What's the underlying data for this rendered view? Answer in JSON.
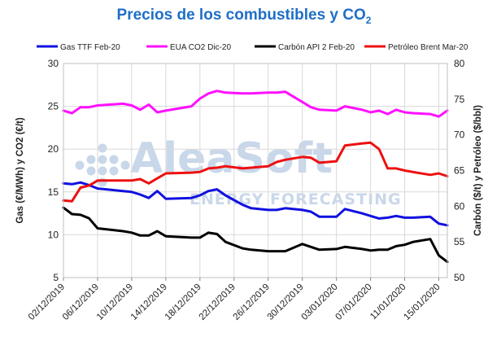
{
  "chart_data": {
    "type": "line",
    "title": "Precios de los combustibles y CO",
    "title_subscript": "2",
    "ylabel_left": "Gas (€/MWh) y CO2 (€/t)",
    "ylabel_right": "Carbón ($/t) y Petróleo ($/bbl)",
    "ylim_left": [
      5,
      30
    ],
    "ylim_right": [
      50,
      80
    ],
    "yticks_left": [
      "5",
      "10",
      "15",
      "20",
      "25",
      "30"
    ],
    "yticks_right": [
      "50",
      "55",
      "60",
      "65",
      "70",
      "75",
      "80"
    ],
    "x_ticks": [
      "02/12/2019",
      "06/12/2019",
      "10/12/2019",
      "14/12/2019",
      "18/12/2019",
      "22/12/2019",
      "26/12/2019",
      "30/12/2019",
      "03/01/2020",
      "07/01/2020",
      "11/01/2020",
      "15/01/2020"
    ],
    "grid": true,
    "legend_position": "top",
    "watermark": {
      "line1": "AleaSoft",
      "line2": "ENERGY FORECASTING"
    },
    "series": [
      {
        "name": "Gas TTF Feb-20",
        "axis": "left",
        "color": "#1010e0",
        "points": [
          [
            "2019-12-02",
            16.0
          ],
          [
            "2019-12-03",
            15.9
          ],
          [
            "2019-12-04",
            16.1
          ],
          [
            "2019-12-05",
            15.8
          ],
          [
            "2019-12-06",
            15.4
          ],
          [
            "2019-12-09",
            15.1
          ],
          [
            "2019-12-10",
            15.0
          ],
          [
            "2019-12-11",
            14.7
          ],
          [
            "2019-12-12",
            14.3
          ],
          [
            "2019-12-13",
            15.1
          ],
          [
            "2019-12-14",
            14.2
          ],
          [
            "2019-12-17",
            14.3
          ],
          [
            "2019-12-18",
            14.6
          ],
          [
            "2019-12-19",
            15.1
          ],
          [
            "2019-12-20",
            15.3
          ],
          [
            "2019-12-21",
            14.6
          ],
          [
            "2019-12-23",
            13.5
          ],
          [
            "2019-12-24",
            13.1
          ],
          [
            "2019-12-26",
            12.9
          ],
          [
            "2019-12-27",
            12.9
          ],
          [
            "2019-12-28",
            13.1
          ],
          [
            "2019-12-30",
            12.9
          ],
          [
            "2019-12-31",
            12.7
          ],
          [
            "2020-01-01",
            12.1
          ],
          [
            "2020-01-03",
            12.1
          ],
          [
            "2020-01-04",
            13.0
          ],
          [
            "2020-01-06",
            12.5
          ],
          [
            "2020-01-07",
            12.2
          ],
          [
            "2020-01-08",
            11.9
          ],
          [
            "2020-01-09",
            12.0
          ],
          [
            "2020-01-10",
            12.2
          ],
          [
            "2020-01-11",
            12.0
          ],
          [
            "2020-01-12",
            12.0
          ],
          [
            "2020-01-14",
            12.1
          ],
          [
            "2020-01-15",
            11.3
          ],
          [
            "2020-01-16",
            11.1
          ]
        ]
      },
      {
        "name": "EUA CO2 Dic-20",
        "axis": "left",
        "color": "#ff10ff",
        "points": [
          [
            "2019-12-02",
            24.5
          ],
          [
            "2019-12-03",
            24.2
          ],
          [
            "2019-12-04",
            24.9
          ],
          [
            "2019-12-05",
            24.9
          ],
          [
            "2019-12-06",
            25.1
          ],
          [
            "2019-12-09",
            25.3
          ],
          [
            "2019-12-10",
            25.1
          ],
          [
            "2019-12-11",
            24.6
          ],
          [
            "2019-12-12",
            25.2
          ],
          [
            "2019-12-13",
            24.3
          ],
          [
            "2019-12-14",
            24.5
          ],
          [
            "2019-12-17",
            25.0
          ],
          [
            "2019-12-18",
            25.9
          ],
          [
            "2019-12-19",
            26.5
          ],
          [
            "2019-12-20",
            26.8
          ],
          [
            "2019-12-21",
            26.6
          ],
          [
            "2019-12-23",
            26.5
          ],
          [
            "2019-12-24",
            26.5
          ],
          [
            "2019-12-26",
            26.6
          ],
          [
            "2019-12-27",
            26.6
          ],
          [
            "2019-12-28",
            26.7
          ],
          [
            "2019-12-30",
            25.5
          ],
          [
            "2019-12-31",
            24.9
          ],
          [
            "2020-01-01",
            24.6
          ],
          [
            "2020-01-03",
            24.5
          ],
          [
            "2020-01-04",
            25.0
          ],
          [
            "2020-01-06",
            24.6
          ],
          [
            "2020-01-07",
            24.3
          ],
          [
            "2020-01-08",
            24.5
          ],
          [
            "2020-01-09",
            24.1
          ],
          [
            "2020-01-10",
            24.6
          ],
          [
            "2020-01-11",
            24.3
          ],
          [
            "2020-01-12",
            24.2
          ],
          [
            "2020-01-14",
            24.1
          ],
          [
            "2020-01-15",
            23.8
          ],
          [
            "2020-01-16",
            24.5
          ]
        ]
      },
      {
        "name": "Carbón API 2 Feb-20",
        "axis": "right",
        "color": "#000000",
        "points": [
          [
            "2019-12-02",
            59.8
          ],
          [
            "2019-12-03",
            58.9
          ],
          [
            "2019-12-04",
            58.8
          ],
          [
            "2019-12-05",
            58.3
          ],
          [
            "2019-12-06",
            56.9
          ],
          [
            "2019-12-09",
            56.5
          ],
          [
            "2019-12-10",
            56.3
          ],
          [
            "2019-12-11",
            55.9
          ],
          [
            "2019-12-12",
            55.9
          ],
          [
            "2019-12-13",
            56.5
          ],
          [
            "2019-12-14",
            55.8
          ],
          [
            "2019-12-17",
            55.6
          ],
          [
            "2019-12-18",
            55.6
          ],
          [
            "2019-12-19",
            56.3
          ],
          [
            "2019-12-20",
            56.1
          ],
          [
            "2019-12-21",
            55.0
          ],
          [
            "2019-12-23",
            54.1
          ],
          [
            "2019-12-24",
            53.9
          ],
          [
            "2019-12-26",
            53.7
          ],
          [
            "2019-12-27",
            53.7
          ],
          [
            "2019-12-28",
            53.7
          ],
          [
            "2019-12-30",
            54.7
          ],
          [
            "2019-12-31",
            54.3
          ],
          [
            "2020-01-01",
            53.9
          ],
          [
            "2020-01-03",
            54.0
          ],
          [
            "2020-01-04",
            54.3
          ],
          [
            "2020-01-06",
            54.0
          ],
          [
            "2020-01-07",
            53.8
          ],
          [
            "2020-01-08",
            53.9
          ],
          [
            "2020-01-09",
            53.9
          ],
          [
            "2020-01-10",
            54.4
          ],
          [
            "2020-01-11",
            54.6
          ],
          [
            "2020-01-12",
            55.0
          ],
          [
            "2020-01-14",
            55.4
          ],
          [
            "2020-01-15",
            53.1
          ],
          [
            "2020-01-16",
            52.2
          ]
        ]
      },
      {
        "name": "Petróleo Brent Mar-20",
        "axis": "right",
        "color": "#ee1010",
        "points": [
          [
            "2019-12-02",
            60.8
          ],
          [
            "2019-12-03",
            60.7
          ],
          [
            "2019-12-04",
            62.6
          ],
          [
            "2019-12-05",
            62.9
          ],
          [
            "2019-12-06",
            63.6
          ],
          [
            "2019-12-09",
            63.6
          ],
          [
            "2019-12-10",
            63.6
          ],
          [
            "2019-12-11",
            63.8
          ],
          [
            "2019-12-12",
            63.2
          ],
          [
            "2019-12-13",
            63.9
          ],
          [
            "2019-12-14",
            64.6
          ],
          [
            "2019-12-17",
            64.7
          ],
          [
            "2019-12-18",
            64.8
          ],
          [
            "2019-12-19",
            65.3
          ],
          [
            "2019-12-20",
            65.4
          ],
          [
            "2019-12-21",
            65.6
          ],
          [
            "2019-12-23",
            65.3
          ],
          [
            "2019-12-24",
            65.4
          ],
          [
            "2019-12-26",
            65.6
          ],
          [
            "2019-12-27",
            66.2
          ],
          [
            "2019-12-28",
            66.5
          ],
          [
            "2019-12-30",
            66.9
          ],
          [
            "2019-12-31",
            66.8
          ],
          [
            "2020-01-01",
            66.1
          ],
          [
            "2020-01-03",
            66.3
          ],
          [
            "2020-01-04",
            68.5
          ],
          [
            "2020-01-06",
            68.8
          ],
          [
            "2020-01-07",
            68.9
          ],
          [
            "2020-01-08",
            68.0
          ],
          [
            "2020-01-09",
            65.3
          ],
          [
            "2020-01-10",
            65.3
          ],
          [
            "2020-01-11",
            65.0
          ],
          [
            "2020-01-12",
            64.8
          ],
          [
            "2020-01-14",
            64.4
          ],
          [
            "2020-01-15",
            64.6
          ],
          [
            "2020-01-16",
            64.2
          ]
        ]
      }
    ]
  }
}
